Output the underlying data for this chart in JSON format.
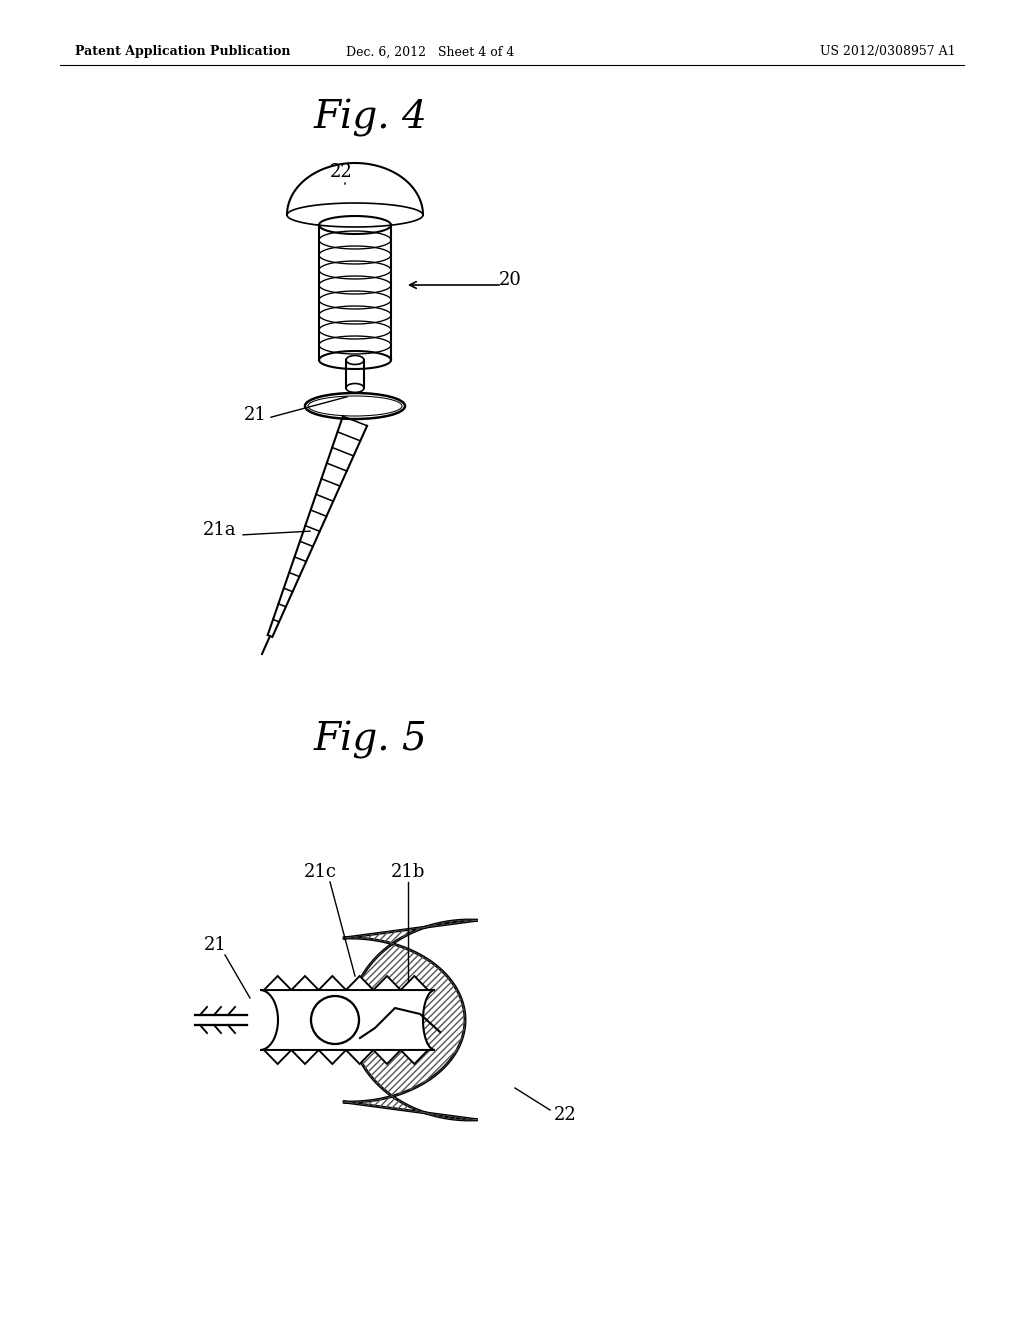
{
  "bg_color": "#ffffff",
  "text_color": "#000000",
  "line_color": "#000000",
  "header_left": "Patent Application Publication",
  "header_mid": "Dec. 6, 2012   Sheet 4 of 4",
  "header_right": "US 2012/0308957 A1",
  "fig4_title": "Fig. 4",
  "fig5_title": "Fig. 5",
  "label_20": "20",
  "label_21": "21",
  "label_21a": "21a",
  "label_21b": "21b",
  "label_21c": "21c",
  "label_22_fig4": "22",
  "label_22_fig5": "22"
}
